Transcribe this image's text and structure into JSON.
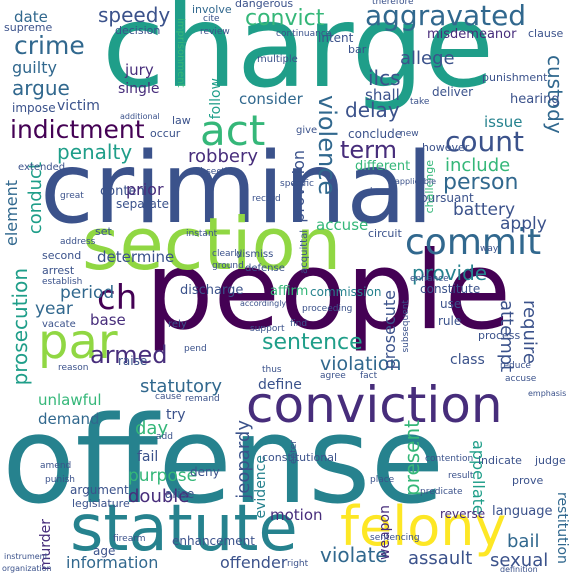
{
  "palette": {
    "dark_purple": "#440154",
    "indigo": "#3b528b",
    "slate_blue": "#31688e",
    "blue_teal": "#26828e",
    "teal": "#1f9e89",
    "green_teal": "#35b779",
    "lime": "#90d743",
    "yellow": "#fde725",
    "deep_indigo": "#472d7b"
  },
  "words": {
    "charge": "charge",
    "criminal": "criminal",
    "people": "people",
    "offense": "offense",
    "section": "section",
    "statute": "statute",
    "conviction": "conviction",
    "felony": "felony",
    "par": "par",
    "commit": "commit",
    "act": "act",
    "aggravated": "aggravated",
    "convict": "convict",
    "indictment": "indictment",
    "speedy": "speedy",
    "count": "count",
    "violence": "violence",
    "crime": "crime",
    "term": "term",
    "ch": "ch",
    "armed": "armed",
    "sentence": "sentence",
    "prosecution": "prosecution",
    "violation": "violation",
    "robbery": "robbery",
    "person": "person",
    "include": "include",
    "provide": "provide",
    "penalty": "penalty",
    "argue": "argue",
    "guilty": "guilty",
    "date": "date",
    "jury": "jury",
    "custody": "custody",
    "require": "require",
    "allege": "allege",
    "delay": "delay",
    "attempt": "attempt",
    "statutory": "statutory",
    "present": "present",
    "violate": "violate",
    "assault": "assault",
    "sexual": "sexual",
    "offender": "offender",
    "information": "information",
    "double": "double",
    "jeopardy": "jeopardy",
    "appellate": "appellate",
    "bail": "bail",
    "motion": "motion",
    "evidence": "evidence",
    "purpose": "purpose",
    "battery": "battery",
    "accuse": "accuse",
    "determine": "determine",
    "provision": "provision",
    "prosecute": "prosecute",
    "conduct": "conduct",
    "element": "element",
    "period": "period",
    "year": "year",
    "base": "base",
    "unlawful": "unlawful",
    "demand": "demand",
    "day": "day",
    "try": "try",
    "fail": "fail",
    "murder": "murder",
    "ilcs": "ilcs",
    "shall": "shall",
    "consider": "consider",
    "follow": "follow",
    "single": "single",
    "victim": "victim",
    "issue": "issue",
    "hearing": "hearing",
    "impose": "impose",
    "misdemeanor": "misdemeanor",
    "intent": "intent",
    "involve": "involve",
    "dangerous": "dangerous",
    "supreme": "supreme",
    "decision": "decision",
    "imprisonment": "imprisonment",
    "restitution": "restitution",
    "weapon": "weapon",
    "class": "class",
    "define": "define",
    "discharge": "discharge",
    "affirm": "affirm",
    "commission": "commission",
    "constitute": "constitute",
    "apply": "apply",
    "pursuant": "pursuant",
    "different": "different",
    "separate": "separate",
    "contend": "contend",
    "prior": "prior",
    "second": "second",
    "arrest": "arrest",
    "raise": "raise",
    "arise": "arise",
    "deny": "deny",
    "enhancement": "enhancement",
    "argument": "argument",
    "language": "language",
    "reverse": "reverse",
    "age": "age",
    "constitutional": "constitutional",
    "legislature": "legislature",
    "indicate": "indicate",
    "judge": "judge",
    "prove": "prove",
    "use": "use",
    "rule": "rule",
    "process": "process",
    "occur": "occur",
    "law": "law",
    "give": "give",
    "deliver": "deliver",
    "punishment": "punishment",
    "conclude": "conclude",
    "take": "take",
    "however": "however",
    "challenge": "challenge",
    "bar": "bar",
    "multiple": "multiple",
    "cite": "cite",
    "review": "review",
    "clause": "clause",
    "therefore": "therefore",
    "continuance": "continuance",
    "additional": "additional",
    "extended": "extended",
    "subsection": "subsection",
    "record": "record",
    "circuit": "circuit",
    "dismiss": "dismiss",
    "defense": "defense",
    "acquittal": "acquittal",
    "ground": "ground",
    "clearly": "clearly",
    "instant": "instant",
    "address": "address",
    "establish": "establish",
    "vacate": "vacate",
    "reason": "reason",
    "rely": "rely",
    "support": "support",
    "find": "find",
    "subsequent": "subsequent",
    "proceeding": "proceeding",
    "accordingly": "accordingly",
    "pend": "pend",
    "cause": "cause",
    "remand": "remand",
    "thus": "thus",
    "agree": "agree",
    "fact": "fact",
    "reduce": "reduce",
    "accuse2": "accuse",
    "amend": "amend",
    "punish": "punish",
    "add": "add",
    "enter": "enter",
    "firearm": "firearm",
    "place": "place",
    "right": "right",
    "result": "result",
    "predicate": "predicate",
    "contention": "contention",
    "sentencing": "sentencing",
    "instrument": "instrument",
    "organization": "organization",
    "definition": "definition",
    "emphasis": "emphasis",
    "enhance": "enhance",
    "great": "great",
    "specific": "specific",
    "applicable": "applicable",
    "new": "new",
    "have": "have",
    "set": "set",
    "way": "way"
  }
}
